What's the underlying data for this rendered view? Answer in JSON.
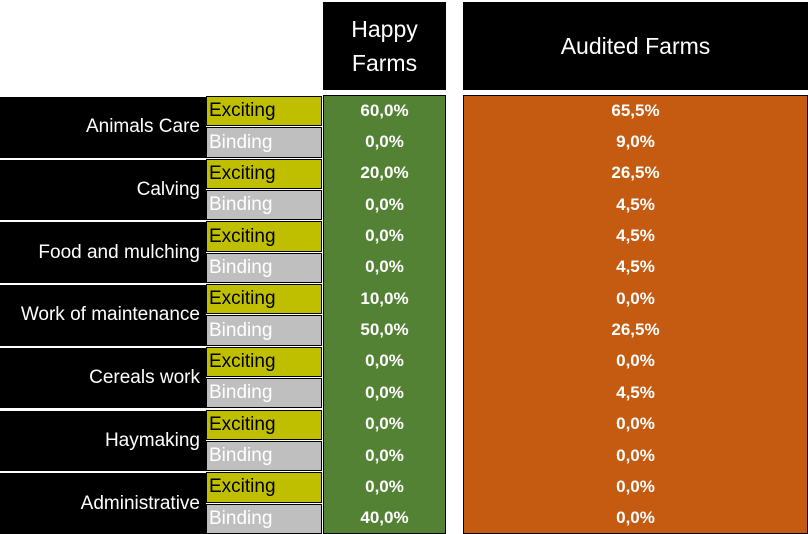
{
  "colors": {
    "header_bg": "#000000",
    "happy_bg": "#548235",
    "audited_bg": "#c55a11",
    "exciting_bg": "#bfbf00",
    "binding_bg": "#bfbfbf"
  },
  "headers": {
    "happy": "Happy Farms",
    "audited": "Audited Farms"
  },
  "chart_data": {
    "type": "table",
    "columns": [
      "Happy Farms",
      "Audited Farms"
    ],
    "rows": [
      {
        "category": "Animals Care",
        "exciting": {
          "label": "Exciting",
          "happy": "60,0%",
          "audited": "65,5%"
        },
        "binding": {
          "label": "Binding",
          "happy": "0,0%",
          "audited": "9,0%"
        }
      },
      {
        "category": "Calving",
        "exciting": {
          "label": "Exciting",
          "happy": "20,0%",
          "audited": "26,5%"
        },
        "binding": {
          "label": "Binding",
          "happy": "0,0%",
          "audited": "4,5%"
        }
      },
      {
        "category": "Food and mulching",
        "exciting": {
          "label": "Exciting",
          "happy": "0,0%",
          "audited": "4,5%"
        },
        "binding": {
          "label": "Binding",
          "happy": "0,0%",
          "audited": "4,5%"
        }
      },
      {
        "category": "Work of maintenance",
        "exciting": {
          "label": "Exciting",
          "happy": "10,0%",
          "audited": "0,0%"
        },
        "binding": {
          "label": "Binding",
          "happy": "50,0%",
          "audited": "26,5%"
        }
      },
      {
        "category": "Cereals work",
        "exciting": {
          "label": "Exciting",
          "happy": "0,0%",
          "audited": "0,0%"
        },
        "binding": {
          "label": "Binding",
          "happy": "0,0%",
          "audited": "4,5%"
        }
      },
      {
        "category": "Haymaking",
        "exciting": {
          "label": "Exciting",
          "happy": "0,0%",
          "audited": "0,0%"
        },
        "binding": {
          "label": "Binding",
          "happy": "0,0%",
          "audited": "0,0%"
        }
      },
      {
        "category": "Administrative",
        "exciting": {
          "label": "Exciting",
          "happy": "0,0%",
          "audited": "0,0%"
        },
        "binding": {
          "label": "Binding",
          "happy": "40,0%",
          "audited": "0,0%"
        }
      }
    ]
  }
}
